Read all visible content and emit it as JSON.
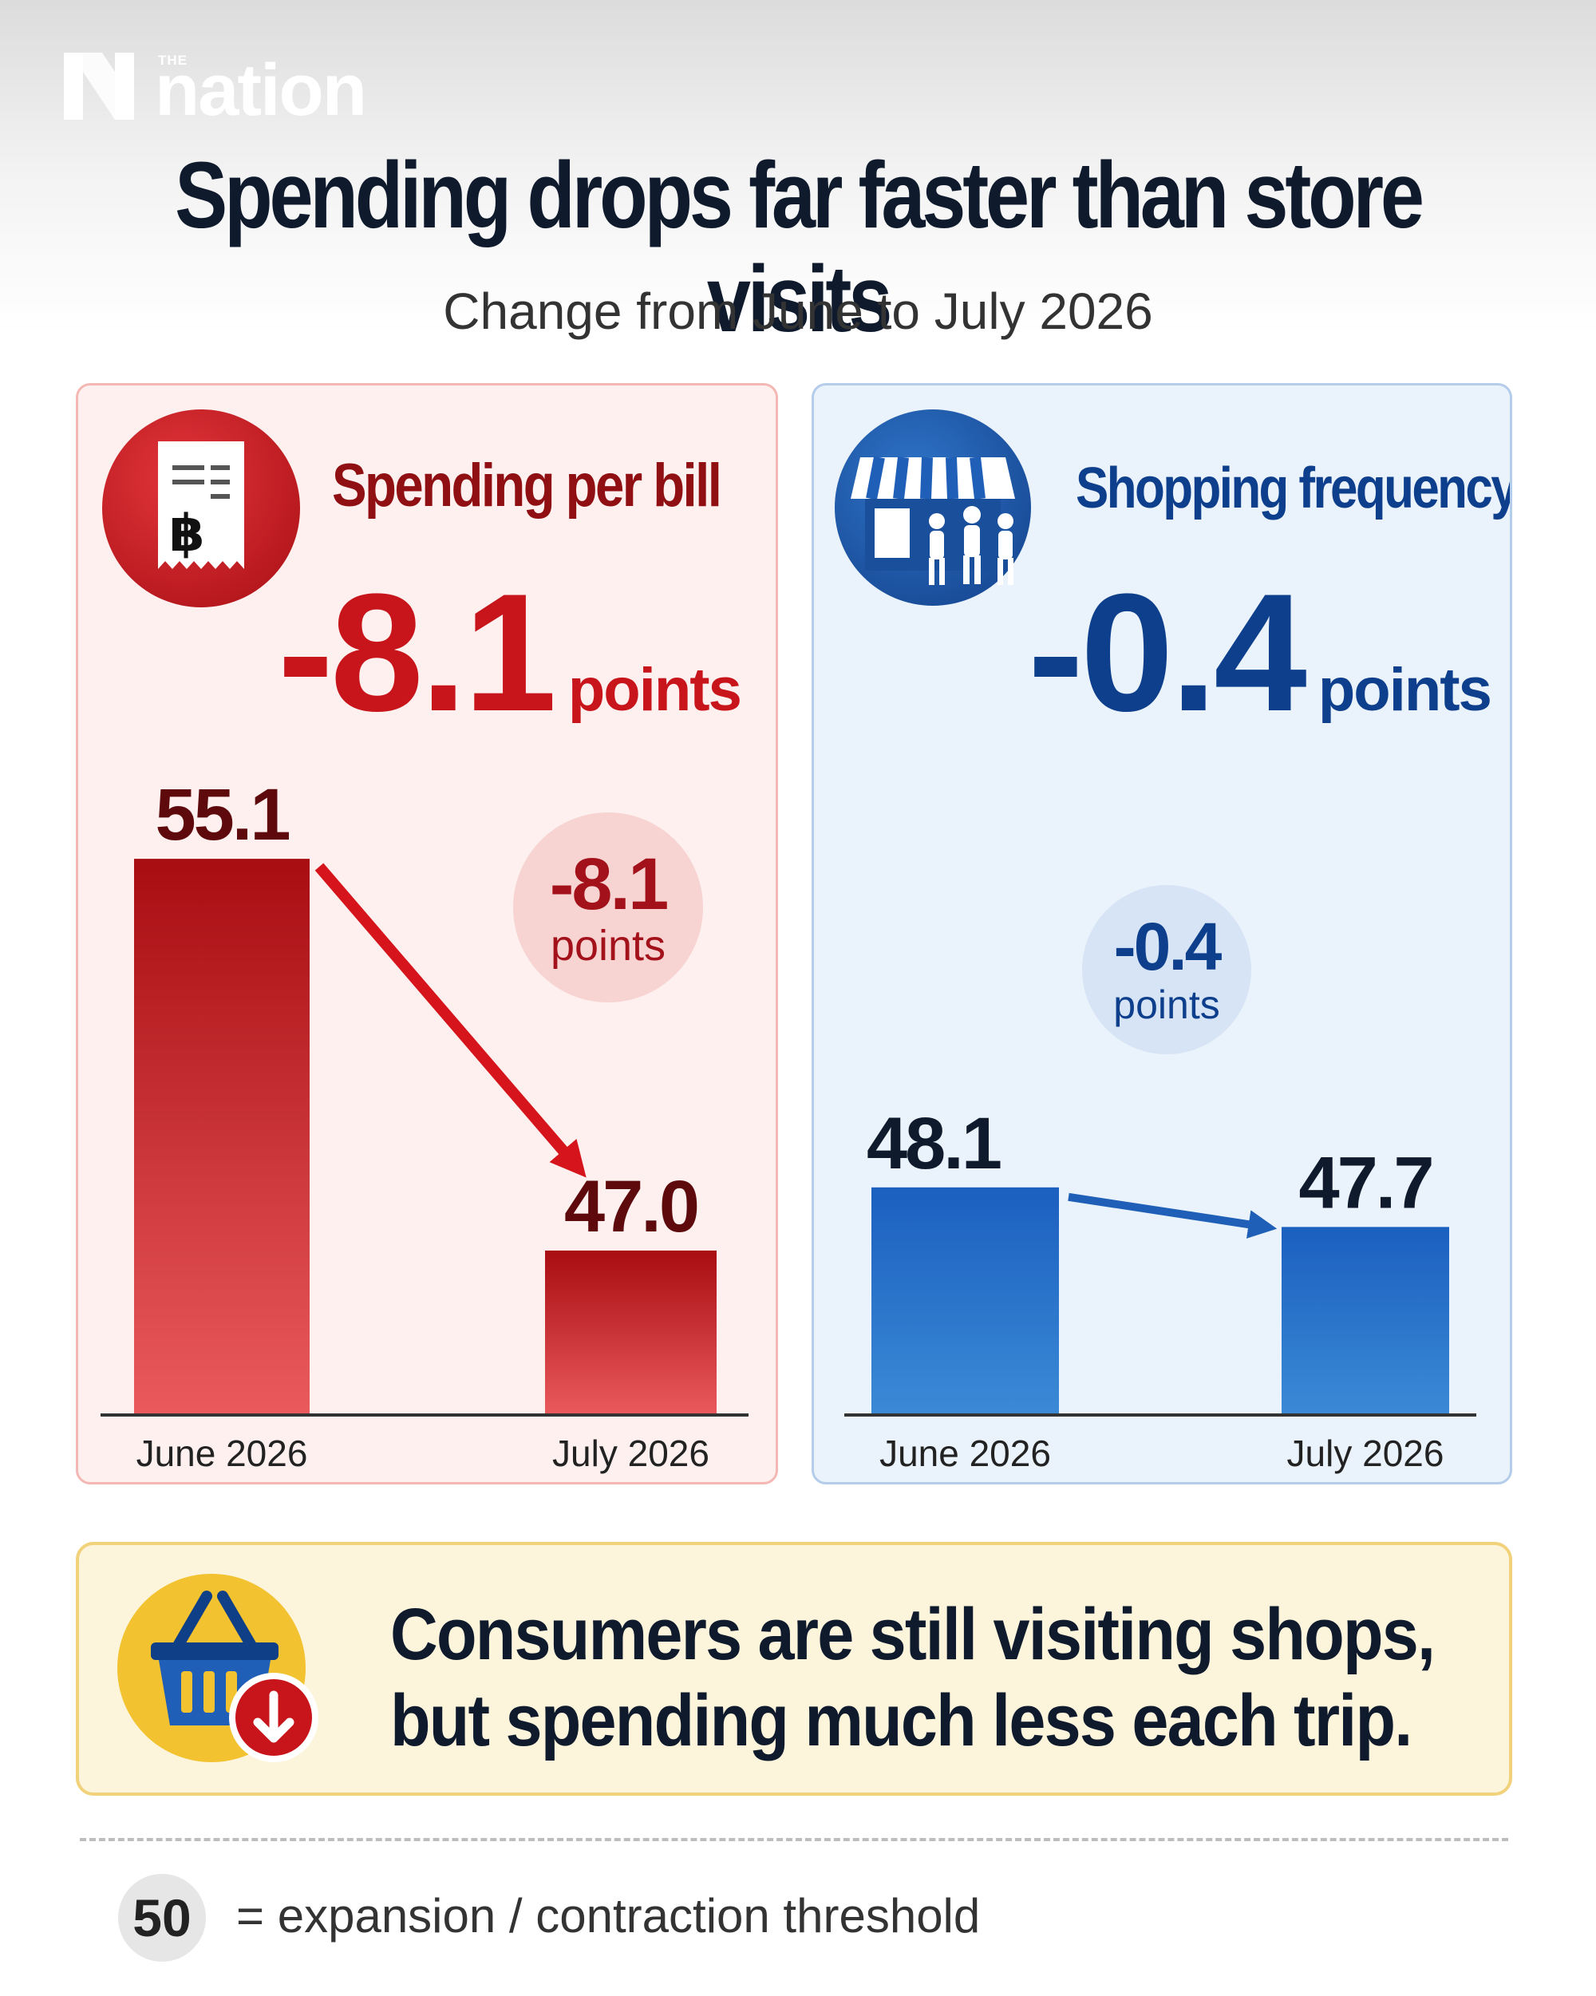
{
  "brand": {
    "the": "THE",
    "name": "nation"
  },
  "title": "Spending drops far faster than store visits",
  "subtitle": "Change from June to July 2026",
  "colors": {
    "spend_accent": "#c8151b",
    "spend_dark": "#8f0f12",
    "freq_accent": "#1f5fb8",
    "freq_dark": "#0e3f8c"
  },
  "panels": {
    "spending": {
      "title": "Spending per bill",
      "icon": "receipt-baht-icon",
      "icon_text": "฿",
      "change_value": "-8.1",
      "change_unit": "points",
      "bubble_value": "-8.1",
      "bubble_unit": "points"
    },
    "frequency": {
      "title": "Shopping frequency",
      "icon": "storefront-shoppers-icon",
      "change_value": "-0.4",
      "change_unit": "points",
      "bubble_value": "-0.4",
      "bubble_unit": "points"
    }
  },
  "chart_data": [
    {
      "type": "bar",
      "title": "Spending per bill",
      "categories": [
        "June 2026",
        "July 2026"
      ],
      "values": [
        55.1,
        47.0
      ],
      "value_labels": [
        "55.1",
        "47.0"
      ],
      "change": -8.1
    },
    {
      "type": "bar",
      "title": "Shopping frequency",
      "categories": [
        "June 2026",
        "July 2026"
      ],
      "values": [
        48.1,
        47.7
      ],
      "value_labels": [
        "48.1",
        "47.7"
      ],
      "change": -0.4
    }
  ],
  "takeaway": {
    "icon": "shopping-basket-down-icon",
    "line1": "Consumers are still visiting shops,",
    "line2": "but spending much less each trip."
  },
  "footnote": {
    "threshold_value": "50",
    "threshold_text": "= expansion / contraction threshold"
  }
}
